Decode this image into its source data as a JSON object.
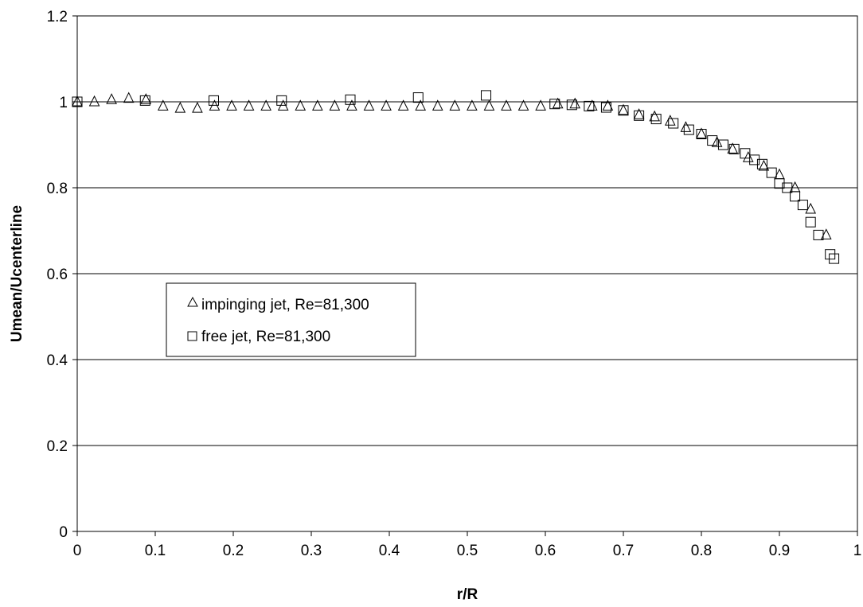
{
  "chart_data": {
    "type": "scatter",
    "xlabel": "r/R",
    "ylabel": "Umean/Ucenterline",
    "xlim": [
      0,
      1
    ],
    "ylim": [
      0,
      1.2
    ],
    "x_ticks": [
      0,
      0.1,
      0.2,
      0.3,
      0.4,
      0.5,
      0.6,
      0.7,
      0.8,
      0.9,
      1
    ],
    "x_tick_labels": [
      "0",
      "0.1",
      "0.2",
      "0.3",
      "0.4",
      "0.5",
      "0.6",
      "0.7",
      "0.8",
      "0.9",
      "1"
    ],
    "y_ticks": [
      0,
      0.2,
      0.4,
      0.6,
      0.8,
      1,
      1.2
    ],
    "y_tick_labels": [
      "0",
      "0.2",
      "0.4",
      "0.6",
      "0.8",
      "1",
      "1.2"
    ],
    "grid": "horizontal",
    "legend_position": "center-left",
    "series": [
      {
        "name": "impinging jet, Re=81,300",
        "marker": "triangle",
        "x": [
          0,
          0.022,
          0.044,
          0.066,
          0.088,
          0.11,
          0.132,
          0.154,
          0.176,
          0.198,
          0.22,
          0.242,
          0.264,
          0.286,
          0.308,
          0.33,
          0.352,
          0.374,
          0.396,
          0.418,
          0.44,
          0.462,
          0.484,
          0.506,
          0.528,
          0.55,
          0.572,
          0.594,
          0.616,
          0.638,
          0.66,
          0.68,
          0.7,
          0.72,
          0.74,
          0.76,
          0.78,
          0.8,
          0.82,
          0.84,
          0.86,
          0.88,
          0.9,
          0.92,
          0.94,
          0.96
        ],
        "y": [
          1.0,
          1.0,
          1.005,
          1.008,
          1.005,
          0.99,
          0.985,
          0.985,
          0.99,
          0.99,
          0.99,
          0.99,
          0.99,
          0.99,
          0.99,
          0.99,
          0.99,
          0.99,
          0.99,
          0.99,
          0.99,
          0.99,
          0.99,
          0.99,
          0.99,
          0.99,
          0.99,
          0.99,
          0.995,
          0.995,
          0.99,
          0.99,
          0.98,
          0.97,
          0.965,
          0.955,
          0.94,
          0.925,
          0.905,
          0.89,
          0.87,
          0.85,
          0.83,
          0.8,
          0.75,
          0.69
        ]
      },
      {
        "name": "free jet, Re=81,300",
        "marker": "square",
        "x": [
          0,
          0.087,
          0.175,
          0.262,
          0.35,
          0.437,
          0.524,
          0.612,
          0.634,
          0.656,
          0.678,
          0.7,
          0.72,
          0.742,
          0.764,
          0.784,
          0.8,
          0.814,
          0.828,
          0.842,
          0.856,
          0.868,
          0.878,
          0.89,
          0.9,
          0.91,
          0.92,
          0.93,
          0.94,
          0.95,
          0.965,
          0.97
        ],
        "y": [
          1.0,
          1.003,
          1.003,
          1.003,
          1.005,
          1.01,
          1.015,
          0.995,
          0.993,
          0.99,
          0.987,
          0.98,
          0.968,
          0.96,
          0.95,
          0.935,
          0.925,
          0.91,
          0.9,
          0.89,
          0.88,
          0.865,
          0.855,
          0.835,
          0.81,
          0.8,
          0.78,
          0.76,
          0.72,
          0.69,
          0.645,
          0.635
        ]
      }
    ]
  }
}
